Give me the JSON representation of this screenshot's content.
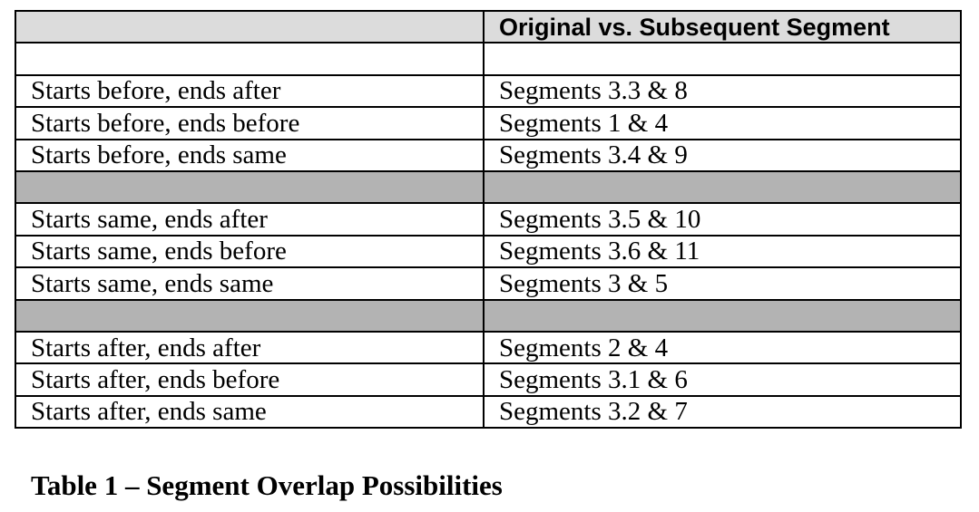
{
  "table": {
    "header": {
      "col1": "",
      "col2": "Original vs. Subsequent Segment"
    },
    "groups": [
      {
        "rows": [
          {
            "relation": "Starts before, ends after",
            "segments": "Segments 3.3 & 8"
          },
          {
            "relation": "Starts before, ends before",
            "segments": "Segments 1 & 4"
          },
          {
            "relation": "Starts before, ends same",
            "segments": "Segments 3.4 & 9"
          }
        ]
      },
      {
        "rows": [
          {
            "relation": "Starts same, ends after",
            "segments": "Segments 3.5 & 10"
          },
          {
            "relation": "Starts same, ends before",
            "segments": "Segments 3.6 & 11"
          },
          {
            "relation": "Starts same, ends same",
            "segments": "Segments 3 & 5"
          }
        ]
      },
      {
        "rows": [
          {
            "relation": "Starts after, ends after",
            "segments": "Segments 2 & 4"
          },
          {
            "relation": "Starts after, ends before",
            "segments": "Segments 3.1 & 6"
          },
          {
            "relation": "Starts after, ends same",
            "segments": "Segments 3.2 & 7"
          }
        ]
      }
    ]
  },
  "caption": "Table 1 – Segment Overlap Possibilities",
  "colors": {
    "header_bg": "#dcdcdc",
    "separator_bg": "#b3b3b3",
    "border": "#000000"
  }
}
